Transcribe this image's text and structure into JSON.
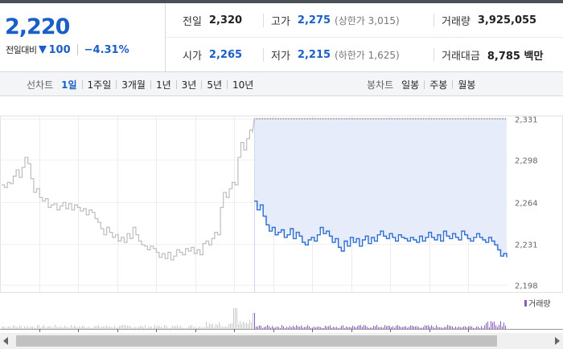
{
  "quote": {
    "price": "2,220",
    "change_label": "전일대비",
    "change_amount": "100",
    "change_rate": "−4.31%",
    "stats": {
      "prev_close": {
        "label": "전일",
        "value": "2,320"
      },
      "high": {
        "label": "고가",
        "value": "2,275",
        "note": "(상한가 3,015)"
      },
      "volume": {
        "label": "거래량",
        "value": "3,925,055"
      },
      "open": {
        "label": "시가",
        "value": "2,265"
      },
      "low": {
        "label": "저가",
        "value": "2,215",
        "note": "(하한가 1,625)"
      },
      "turnover": {
        "label": "거래대금",
        "value": "8,785 백만"
      }
    }
  },
  "tabs": {
    "line_title": "선차트",
    "line_items": [
      "1일",
      "1주일",
      "3개월",
      "1년",
      "3년",
      "5년",
      "10년"
    ],
    "line_active": "1일",
    "candle_title": "봉차트",
    "candle_items": [
      "일봉",
      "주봉",
      "월봉"
    ]
  },
  "colors": {
    "up_blue": "#1a5fc7",
    "line_today": "#2e6fd2",
    "line_prev": "#bdbdbd",
    "fill_today": "#e6ecfa",
    "volume_bar": "#8a5bbf"
  },
  "chart_data": {
    "type": "line",
    "y_ticks": [
      "2,331",
      "2,298",
      "2,264",
      "2,231",
      "2,198"
    ],
    "ylim": [
      2198,
      2331
    ],
    "series": [
      {
        "name": "prev_day",
        "values": [
          2278,
          2276,
          2280,
          2279,
          2285,
          2290,
          2284,
          2292,
          2300,
          2295,
          2283,
          2272,
          2275,
          2268,
          2265,
          2267,
          2260,
          2262,
          2263,
          2258,
          2261,
          2264,
          2259,
          2263,
          2258,
          2262,
          2260,
          2257,
          2259,
          2254,
          2258,
          2256,
          2251,
          2248,
          2243,
          2238,
          2244,
          2240,
          2236,
          2238,
          2233,
          2236,
          2232,
          2239,
          2235,
          2244,
          2238,
          2233,
          2230,
          2229,
          2226,
          2229,
          2227,
          2224,
          2220,
          2223,
          2219,
          2224,
          2218,
          2221,
          2226,
          2224,
          2222,
          2227,
          2225,
          2228,
          2223,
          2226,
          2222,
          2231,
          2233,
          2230,
          2235,
          2240,
          2238,
          2260,
          2272,
          2268,
          2275,
          2280,
          2278,
          2300,
          2312,
          2306,
          2315,
          2322,
          2320
        ]
      },
      {
        "name": "today",
        "values": [
          2265,
          2258,
          2262,
          2253,
          2246,
          2241,
          2244,
          2238,
          2240,
          2242,
          2236,
          2238,
          2243,
          2235,
          2240,
          2237,
          2232,
          2230,
          2234,
          2236,
          2233,
          2238,
          2244,
          2239,
          2241,
          2237,
          2232,
          2235,
          2228,
          2225,
          2233,
          2229,
          2236,
          2232,
          2235,
          2229,
          2234,
          2237,
          2231,
          2236,
          2233,
          2238,
          2241,
          2237,
          2235,
          2239,
          2236,
          2233,
          2238,
          2236,
          2235,
          2233,
          2236,
          2234,
          2232,
          2237,
          2233,
          2236,
          2240,
          2236,
          2234,
          2238,
          2233,
          2241,
          2237,
          2235,
          2239,
          2236,
          2234,
          2241,
          2238,
          2235,
          2233,
          2236,
          2239,
          2236,
          2234,
          2232,
          2236,
          2233,
          2230,
          2226,
          2221,
          2223,
          2220
        ]
      }
    ],
    "volume_label": "거래량"
  }
}
